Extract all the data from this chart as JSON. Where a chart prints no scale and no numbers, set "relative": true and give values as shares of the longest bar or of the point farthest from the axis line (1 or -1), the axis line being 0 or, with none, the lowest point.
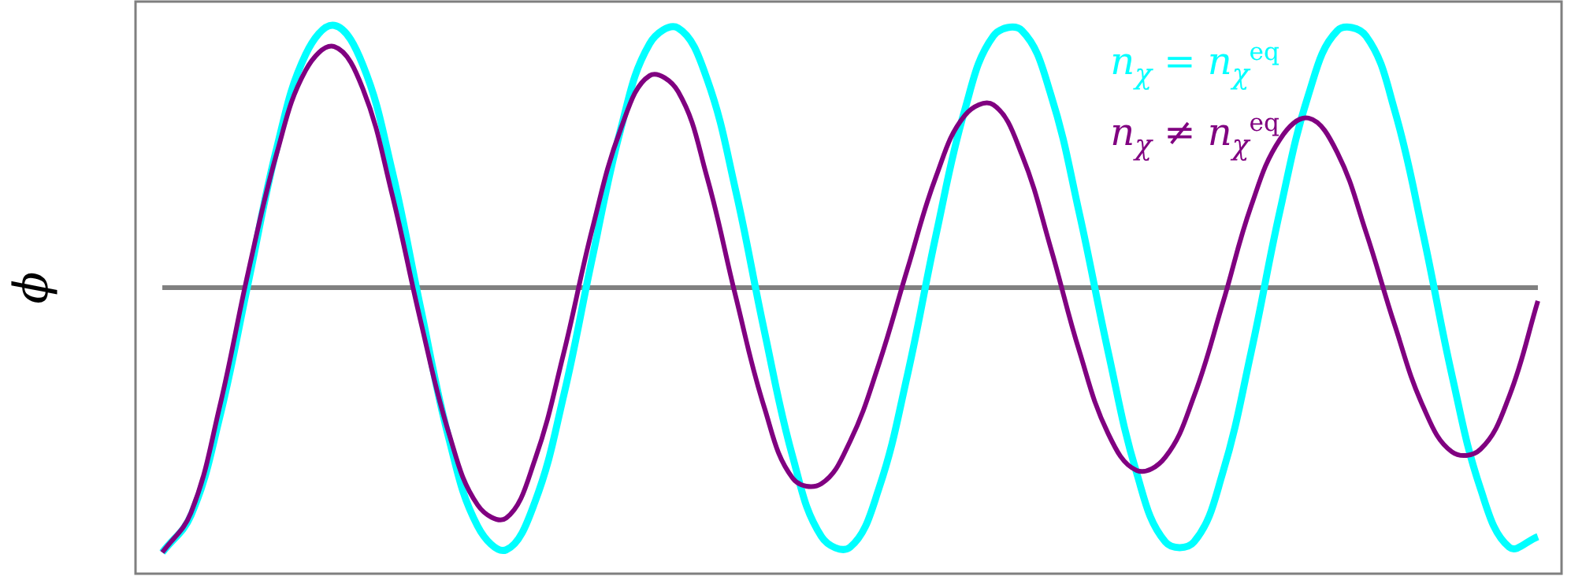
{
  "chart_data": {
    "type": "line",
    "ylabel": "ϕ",
    "relative": true,
    "tick_labels": false,
    "legend": "top right",
    "grid": false,
    "marker": "none",
    "line_style": "solid",
    "categories": [
      null,
      null,
      null,
      null,
      null,
      null,
      null,
      null,
      null,
      null,
      null,
      null,
      null,
      null,
      null,
      null,
      null,
      null,
      null,
      null,
      null,
      null,
      null,
      null,
      null,
      null,
      null,
      null,
      null,
      null,
      null,
      null,
      null,
      null,
      null,
      null,
      null,
      null,
      null,
      null,
      null,
      null,
      null,
      null,
      null,
      null,
      null,
      null,
      null
    ],
    "ref_lines": [
      {
        "axis": "y",
        "value": 0,
        "color": "#808080"
      }
    ],
    "series": [
      {
        "name": "n$_{χ}$ = n$_{χ}$$^{eq}$",
        "color": "#00ffff",
        "values": [
          -1,
          -0.86,
          -0.49,
          0.02,
          0.53,
          0.88,
          0.99,
          0.84,
          0.45,
          -0.07,
          -0.57,
          -0.9,
          -0.99,
          -0.81,
          -0.41,
          0.11,
          0.6,
          0.92,
          0.98,
          0.79,
          0.37,
          -0.16,
          -0.64,
          -0.94,
          -0.98,
          -0.76,
          -0.33,
          0.2,
          0.67,
          0.95,
          0.97,
          0.73,
          0.28,
          -0.24,
          -0.7,
          -0.96,
          -0.96,
          -0.7,
          -0.24,
          0.29,
          0.73,
          0.97,
          0.95,
          0.67,
          0.2,
          -0.33,
          -0.76,
          -0.98,
          -0.94
        ]
      },
      {
        "name": "n$_{χ}$ ≠ n$_{χ}$$^{eq}$",
        "color": "#800080",
        "values": [
          -1,
          -0.85,
          -0.45,
          0.06,
          0.51,
          0.82,
          0.91,
          0.75,
          0.36,
          -0.12,
          -0.55,
          -0.82,
          -0.87,
          -0.65,
          -0.25,
          0.22,
          0.6,
          0.8,
          0.74,
          0.42,
          -0.03,
          -0.45,
          -0.72,
          -0.74,
          -0.58,
          -0.29,
          0.07,
          0.42,
          0.65,
          0.69,
          0.5,
          0.15,
          -0.24,
          -0.55,
          -0.69,
          -0.64,
          -0.41,
          -0.06,
          0.31,
          0.56,
          0.64,
          0.51,
          0.21,
          -0.14,
          -0.45,
          -0.62,
          -0.61,
          -0.41,
          -0.05
        ]
      }
    ]
  }
}
